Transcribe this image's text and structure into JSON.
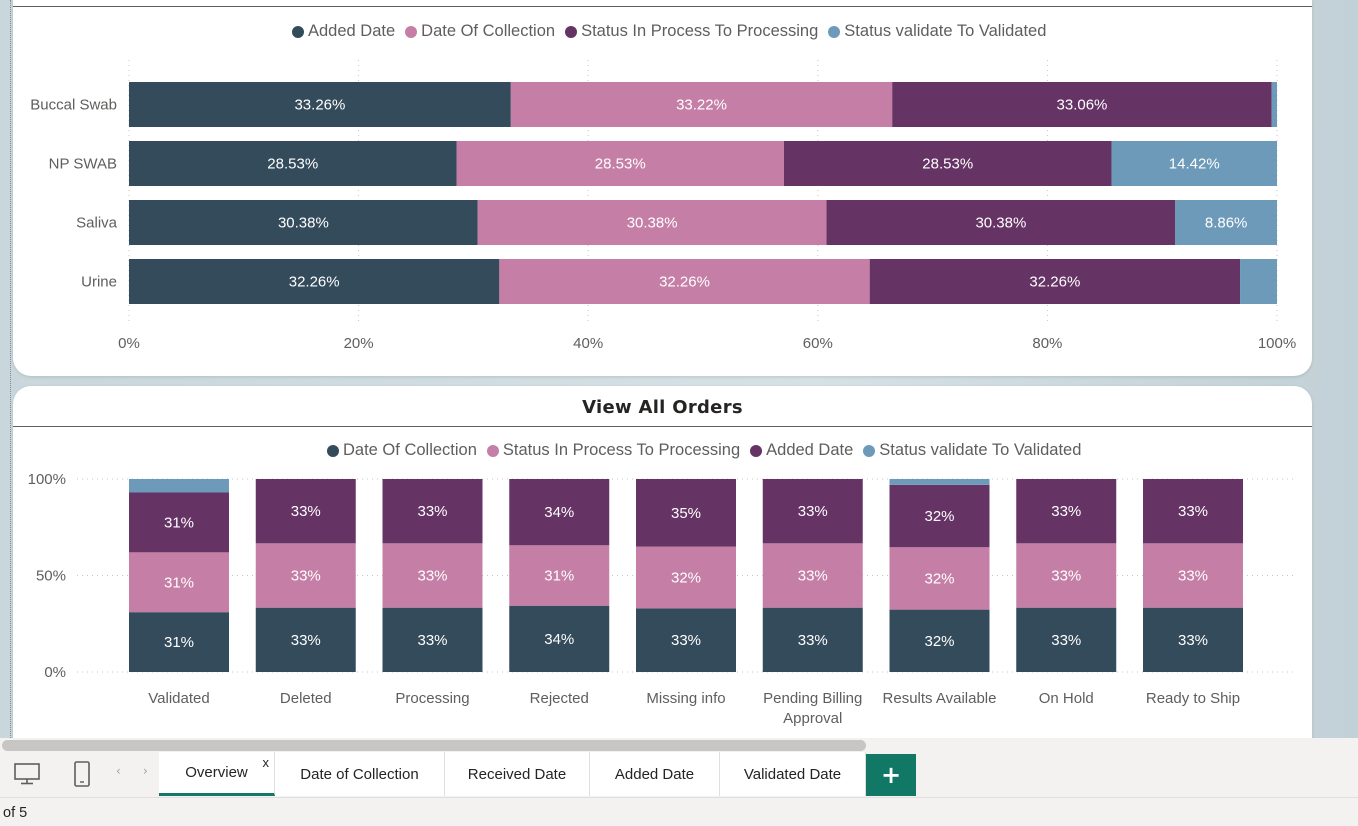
{
  "colors": {
    "added": "#344b5b",
    "collection": "#c57fa6",
    "processing": "#663365",
    "validated": "#6d9ab9",
    "accent": "#117865"
  },
  "chart_data": [
    {
      "type": "bar",
      "orientation": "horizontal",
      "stacking": "percent",
      "title": "",
      "legend_placement": "top",
      "categories": [
        "Buccal Swab",
        "NP SWAB",
        "Saliva",
        "Urine"
      ],
      "series": [
        {
          "name": "Added Date",
          "color": "#344b5b",
          "values": [
            33.26,
            28.53,
            30.38,
            32.26
          ],
          "labels": [
            "33.26%",
            "28.53%",
            "30.38%",
            "32.26%"
          ]
        },
        {
          "name": "Date Of Collection",
          "color": "#c57fa6",
          "values": [
            33.22,
            28.53,
            30.38,
            32.26
          ],
          "labels": [
            "33.22%",
            "28.53%",
            "30.38%",
            "32.26%"
          ]
        },
        {
          "name": "Status In Process To Processing",
          "color": "#663365",
          "values": [
            33.06,
            28.53,
            30.38,
            32.26
          ],
          "labels": [
            "33.06%",
            "28.53%",
            "30.38%",
            "32.26%"
          ]
        },
        {
          "name": "Status validate To Validated",
          "color": "#6d9ab9",
          "values": [
            0.46,
            14.42,
            8.86,
            3.22
          ],
          "labels": [
            "",
            "14.42%",
            "8.86%",
            ""
          ]
        }
      ],
      "xlim": [
        0,
        100
      ],
      "x_ticks": [
        "0%",
        "20%",
        "40%",
        "60%",
        "80%",
        "100%"
      ],
      "grid": true
    },
    {
      "type": "bar",
      "orientation": "vertical",
      "stacking": "percent",
      "title": "View All Orders",
      "legend_placement": "top",
      "categories": [
        "Validated",
        "Deleted",
        "Processing",
        "Rejected",
        "Missing info",
        "Pending Billing Approval",
        "Results Available",
        "On Hold",
        "Ready to Ship"
      ],
      "category_lines": [
        [
          "Validated"
        ],
        [
          "Deleted"
        ],
        [
          "Processing"
        ],
        [
          "Rejected"
        ],
        [
          "Missing info"
        ],
        [
          "Pending Billing",
          "Approval"
        ],
        [
          "Results Available"
        ],
        [
          "On Hold"
        ],
        [
          "Ready to Ship"
        ]
      ],
      "series": [
        {
          "name": "Date Of Collection",
          "color": "#344b5b",
          "values": [
            31,
            33,
            33,
            34,
            33,
            33,
            32,
            33,
            33
          ],
          "labels": [
            "31%",
            "33%",
            "33%",
            "34%",
            "33%",
            "33%",
            "32%",
            "33%",
            "33%"
          ]
        },
        {
          "name": "Status In Process To Processing",
          "color": "#c57fa6",
          "values": [
            31,
            33,
            33,
            31,
            32,
            33,
            32,
            33,
            33
          ],
          "labels": [
            "31%",
            "33%",
            "33%",
            "31%",
            "32%",
            "33%",
            "32%",
            "33%",
            "33%"
          ]
        },
        {
          "name": "Added Date",
          "color": "#663365",
          "values": [
            31,
            33,
            33,
            34,
            35,
            33,
            32,
            33,
            33
          ],
          "labels": [
            "31%",
            "33%",
            "33%",
            "34%",
            "35%",
            "33%",
            "32%",
            "33%",
            "33%"
          ]
        },
        {
          "name": "Status validate To Validated",
          "color": "#6d9ab9",
          "values": [
            7,
            0,
            0,
            0,
            0,
            0,
            3,
            0,
            0
          ],
          "labels": [
            "",
            "",
            "",
            "",
            "",
            "",
            "",
            "",
            ""
          ]
        }
      ],
      "ylim": [
        0,
        100
      ],
      "y_ticks": [
        "0%",
        "50%",
        "100%"
      ],
      "grid": true
    }
  ],
  "tabs": [
    {
      "label": "Overview",
      "active": true,
      "close": "x"
    },
    {
      "label": "Date of Collection"
    },
    {
      "label": "Received Date"
    },
    {
      "label": "Added Date"
    },
    {
      "label": "Validated Date"
    }
  ],
  "add_tab_label": "+",
  "page_count": "of 5",
  "icons": {
    "desktop": "desktop-view-icon",
    "mobile": "mobile-view-icon",
    "prev": "chevron-left-icon",
    "next": "chevron-right-icon"
  },
  "nav": {
    "prev": "‹",
    "next": "›"
  }
}
